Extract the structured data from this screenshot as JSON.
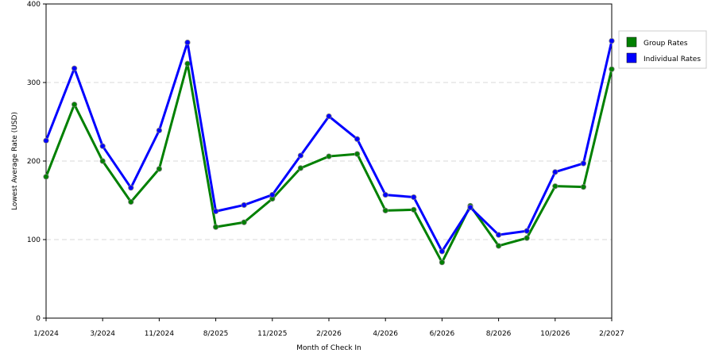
{
  "chart_data": {
    "type": "line",
    "xlabel": "Month of Check In",
    "ylabel": "Lowest Average Rate (USD)",
    "ylim": [
      0,
      400
    ],
    "yticks": [
      0,
      100,
      200,
      300,
      400
    ],
    "ytick_labels": [
      "0",
      "100",
      "200",
      "300",
      "400"
    ],
    "x_count": 21,
    "xtick_labels": [
      {
        "index": 0,
        "label": "1/2024"
      },
      {
        "index": 2,
        "label": "3/2024"
      },
      {
        "index": 4,
        "label": "11/2024"
      },
      {
        "index": 6,
        "label": "8/2025"
      },
      {
        "index": 8,
        "label": "11/2025"
      },
      {
        "index": 10,
        "label": "2/2026"
      },
      {
        "index": 12,
        "label": "4/2026"
      },
      {
        "index": 14,
        "label": "6/2026"
      },
      {
        "index": 16,
        "label": "8/2026"
      },
      {
        "index": 18,
        "label": "10/2026"
      },
      {
        "index": 20,
        "label": "2/2027"
      }
    ],
    "grid": "horizontal-dashed",
    "legend_position": "right",
    "series": [
      {
        "name": "Group Rates",
        "color": "#008000",
        "values": [
          180,
          272,
          200,
          148,
          190,
          324,
          116,
          122,
          152,
          191,
          206,
          209,
          137,
          138,
          71,
          143,
          92,
          102,
          168,
          167,
          317
        ]
      },
      {
        "name": "Individual Rates",
        "color": "#0000ff",
        "values": [
          226,
          318,
          219,
          166,
          239,
          351,
          136,
          144,
          157,
          207,
          257,
          228,
          157,
          154,
          85,
          141,
          106,
          111,
          186,
          197,
          353
        ]
      }
    ]
  }
}
